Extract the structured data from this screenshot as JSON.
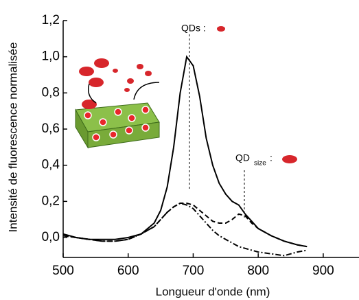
{
  "chart_data": {
    "type": "line",
    "x_label": "Longueur d'onde (nm)",
    "y_label": "Intensité de fluorescence normalisée",
    "annotations": [
      "QDs :",
      "QD",
      "size",
      ":"
    ],
    "x": [
      500,
      520,
      540,
      560,
      580,
      600,
      620,
      640,
      650,
      660,
      670,
      680,
      690,
      700,
      710,
      720,
      730,
      740,
      750,
      760,
      770,
      780,
      790,
      800,
      820,
      840,
      860,
      875
    ],
    "series": [
      {
        "color": "#000000",
        "dash": "solid",
        "values": [
          0.02,
          0.0,
          -0.01,
          -0.01,
          -0.01,
          0.0,
          0.02,
          0.08,
          0.15,
          0.28,
          0.5,
          0.8,
          1.0,
          0.95,
          0.78,
          0.55,
          0.4,
          0.3,
          0.24,
          0.2,
          0.18,
          0.13,
          0.09,
          0.05,
          0.01,
          -0.02,
          -0.04,
          -0.05
        ]
      },
      {
        "color": "#000000",
        "dash": "dashed",
        "values": [
          0.01,
          0.0,
          -0.01,
          -0.02,
          -0.02,
          -0.01,
          0.02,
          0.06,
          0.1,
          0.14,
          0.17,
          0.19,
          0.19,
          0.18,
          0.15,
          0.12,
          0.09,
          0.08,
          0.08,
          0.1,
          0.13,
          0.12,
          0.08,
          0.05,
          0.01,
          -0.02,
          -0.04,
          -0.05
        ]
      },
      {
        "color": "#000000",
        "dash": "dashdot",
        "values": [
          0.01,
          0.0,
          -0.01,
          -0.02,
          -0.02,
          -0.01,
          0.02,
          0.06,
          0.1,
          0.14,
          0.17,
          0.19,
          0.18,
          0.16,
          0.12,
          0.08,
          0.04,
          0.01,
          -0.01,
          -0.03,
          -0.05,
          -0.06,
          -0.07,
          -0.08,
          -0.09,
          -0.1,
          -0.08,
          -0.07
        ]
      }
    ],
    "xlim": [
      500,
      955
    ],
    "ylim": [
      -0.11,
      1.2
    ],
    "xticks": [
      500,
      600,
      700,
      800,
      900
    ],
    "yticks": [
      {
        "value": 0,
        "label": "0,0"
      },
      {
        "value": 0.2,
        "label": "0,2"
      },
      {
        "value": 0.4,
        "label": "0,4"
      },
      {
        "value": 0.6,
        "label": "0,6"
      },
      {
        "value": 0.8,
        "label": "0,8"
      },
      {
        "value": 1.0,
        "label": "1,0"
      },
      {
        "value": 1.2,
        "label": "1,2"
      }
    ]
  }
}
